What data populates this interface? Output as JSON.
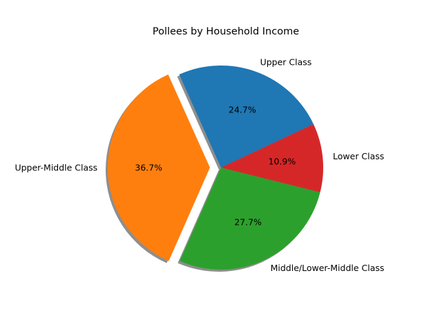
{
  "chart_data": {
    "type": "pie",
    "title": "Pollees by Household Income",
    "categories": [
      "Upper Class",
      "Lower Class",
      "Middle/Lower-Middle Class",
      "Upper-Middle Class"
    ],
    "values": [
      24.7,
      10.9,
      27.7,
      36.7
    ],
    "percent_labels": [
      "24.7%",
      "10.9%",
      "27.7%",
      "36.7%"
    ],
    "colors": [
      "#1f77b4",
      "#d62728",
      "#2ca02c",
      "#ff7f0e"
    ],
    "exploded": [
      "Upper-Middle Class"
    ],
    "shadow": true,
    "legend": "none"
  }
}
